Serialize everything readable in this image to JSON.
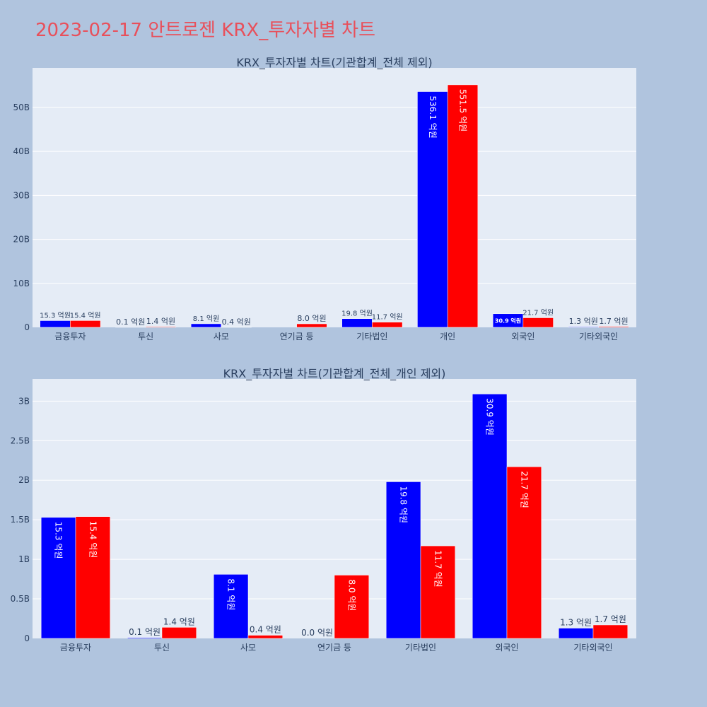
{
  "page_title": "2023-02-17 안트로젠 KRX_투자자별 차트",
  "colors": {
    "buy": "#0000ff",
    "sell": "#ff0000",
    "plot_bg": "#e5ecf6",
    "page_bg": "#b0c4de",
    "title": "#e8505b"
  },
  "chart_data": [
    {
      "type": "bar",
      "title": "KRX_투자자별 차트(기관합계_전체 제외)",
      "categories": [
        "금융투자",
        "투신",
        "사모",
        "연기금 등",
        "기타법인",
        "개인",
        "외국인",
        "기타외국인"
      ],
      "ylim": [
        0,
        5.9
      ],
      "yticks": [
        0,
        1,
        2,
        3,
        4,
        5
      ],
      "ytick_labels": [
        "0",
        "10B",
        "20B",
        "30B",
        "40B",
        "50B"
      ],
      "grid": true,
      "series": [
        {
          "values": [
            0.153,
            0.001,
            0.081,
            0,
            0.198,
            5.361,
            0.309,
            0.013
          ],
          "labels": [
            "15.3 억원",
            "0.1 억원",
            "8.1 억원",
            "",
            "19.8 억원",
            "536.1 억원",
            "30.9 억원",
            "1.3 억원"
          ]
        },
        {
          "values": [
            0.154,
            0.014,
            0.004,
            0.08,
            0.117,
            5.515,
            0.217,
            0.017
          ],
          "labels": [
            "15.4 억원",
            "1.4 억원",
            "0.4 억원",
            "8.0 억원",
            "11.7 억원",
            "551.5 억원",
            "21.7 억원",
            "1.7 억원"
          ]
        }
      ]
    },
    {
      "type": "bar",
      "title": "KRX_투자자별 차트(기관합계_전체_개인 제외)",
      "categories": [
        "금융투자",
        "투신",
        "사모",
        "연기금 등",
        "기타법인",
        "외국인",
        "기타외국인"
      ],
      "ylim": [
        0,
        3.28
      ],
      "yticks": [
        0,
        0.5,
        1,
        1.5,
        2,
        2.5,
        3
      ],
      "ytick_labels": [
        "0",
        "0.5B",
        "1B",
        "1.5B",
        "2B",
        "2.5B",
        "3B"
      ],
      "grid": true,
      "series": [
        {
          "values": [
            1.53,
            0.01,
            0.81,
            0.0,
            1.98,
            3.09,
            0.13
          ],
          "labels": [
            "15.3 억원",
            "0.1 억원",
            "8.1 억원",
            "0.0 억원",
            "19.8 억원",
            "30.9 억원",
            "1.3 억원"
          ]
        },
        {
          "values": [
            1.54,
            0.14,
            0.04,
            0.8,
            1.17,
            2.17,
            0.17
          ],
          "labels": [
            "15.4 억원",
            "1.4 억원",
            "0.4 억원",
            "8.0 억원",
            "11.7 억원",
            "21.7 억원",
            "1.7 억원"
          ]
        }
      ]
    }
  ]
}
